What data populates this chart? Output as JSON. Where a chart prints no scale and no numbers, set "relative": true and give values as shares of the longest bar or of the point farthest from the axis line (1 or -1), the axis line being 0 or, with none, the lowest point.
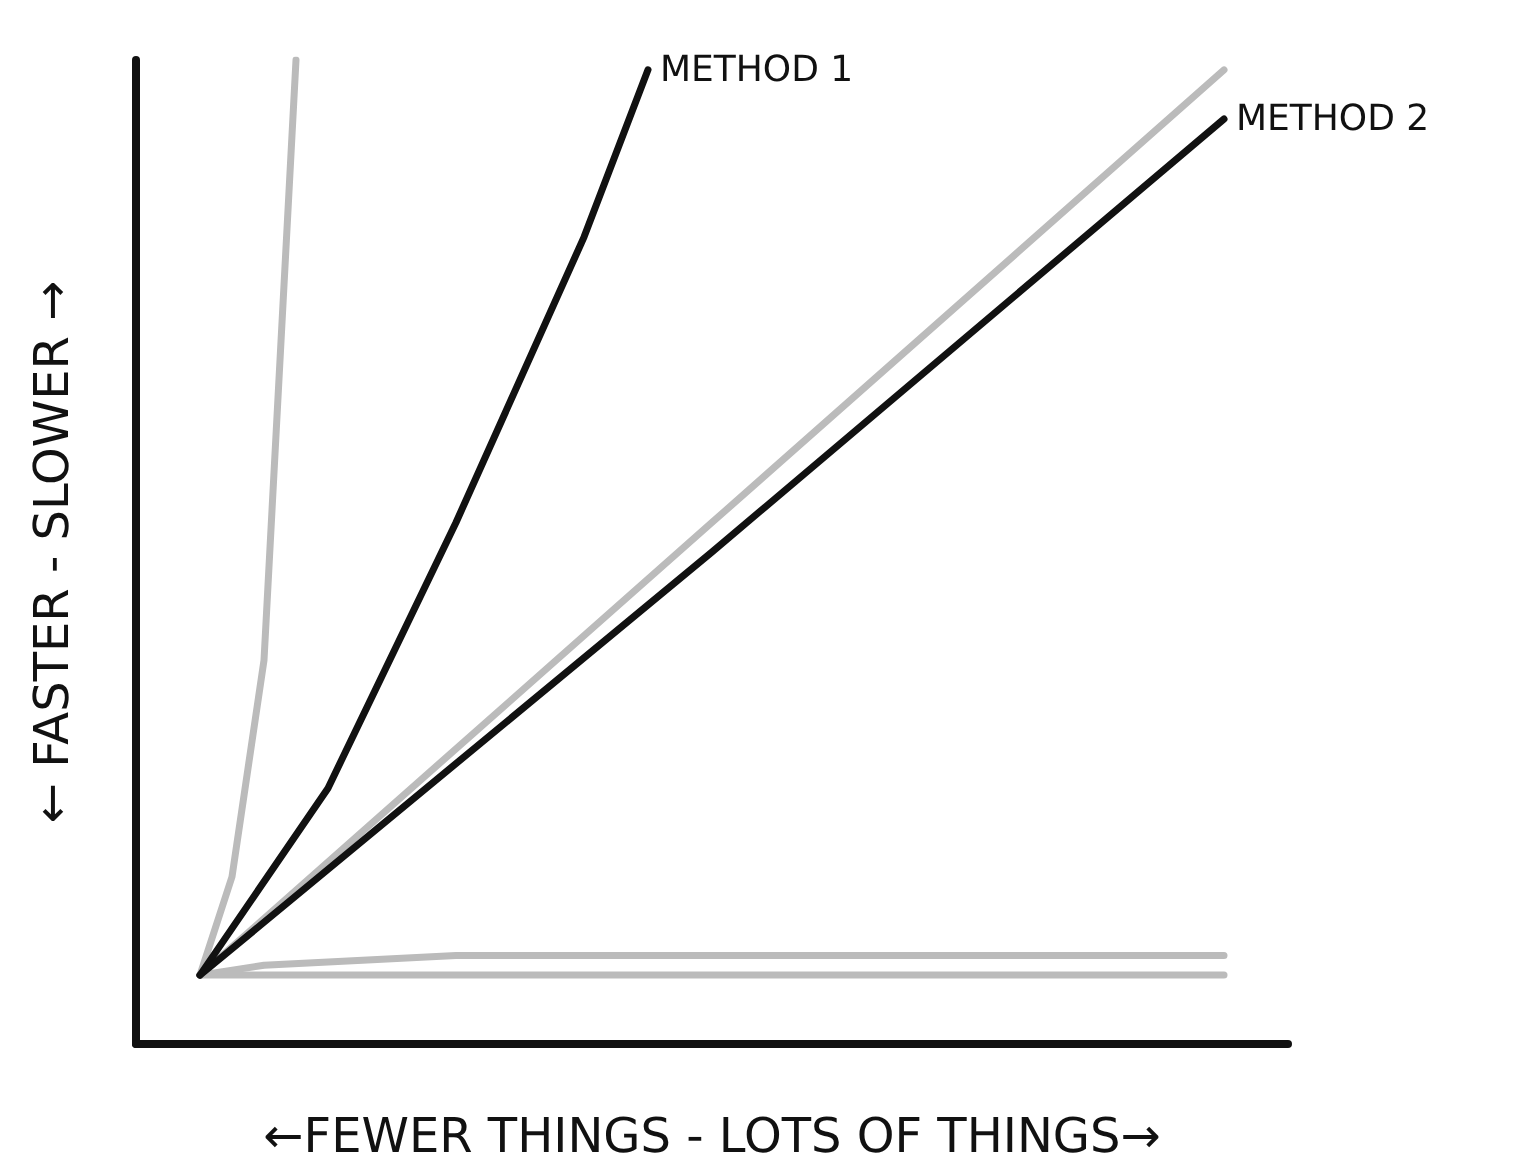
{
  "chart_data": {
    "type": "line",
    "relative": true,
    "xlabel": "←FEWER THINGS - LOTS OF THINGS→",
    "ylabel": "← FASTER - SLOWER →",
    "marker": "none",
    "line_style": "solid",
    "categories": [
      null,
      null,
      null,
      null,
      null,
      null,
      null,
      null,
      null,
      null,
      null,
      null,
      null,
      null,
      null,
      null,
      null,
      null,
      null,
      null,
      null,
      null,
      null,
      null,
      null,
      null,
      null,
      null,
      null,
      null,
      null,
      null,
      null,
      null,
      null,
      null,
      null
    ],
    "series": [
      {
        "color": "#bbbbbb",
        "values": [
          null,
          null,
          0.07,
          0.17,
          0.39,
          1.0,
          null,
          null,
          null,
          null,
          null,
          null,
          null,
          null,
          null,
          null,
          null,
          null,
          null,
          null,
          null,
          null,
          null,
          null,
          null,
          null,
          null,
          null,
          null,
          null,
          null,
          null,
          null,
          null,
          null,
          null,
          null
        ]
      },
      {
        "color": "#bbbbbb",
        "values": [
          null,
          null,
          0.07,
          null,
          null,
          null,
          null,
          null,
          null,
          null,
          null,
          null,
          null,
          null,
          null,
          null,
          null,
          null,
          0.53,
          null,
          null,
          null,
          null,
          null,
          null,
          null,
          null,
          null,
          null,
          null,
          null,
          null,
          null,
          null,
          0.99,
          null,
          null
        ]
      },
      {
        "color": "#bbbbbb",
        "values": [
          null,
          null,
          0.07,
          null,
          0.08,
          null,
          null,
          null,
          null,
          null,
          0.09,
          null,
          null,
          null,
          null,
          null,
          null,
          null,
          null,
          null,
          null,
          null,
          null,
          null,
          null,
          null,
          null,
          null,
          null,
          null,
          null,
          null,
          null,
          null,
          0.09,
          null,
          null
        ]
      },
      {
        "color": "#bbbbbb",
        "values": [
          null,
          null,
          0.07,
          null,
          null,
          null,
          null,
          null,
          null,
          null,
          null,
          null,
          null,
          null,
          null,
          null,
          null,
          null,
          null,
          null,
          null,
          null,
          null,
          null,
          null,
          null,
          null,
          null,
          null,
          null,
          null,
          null,
          null,
          null,
          0.07,
          null,
          null
        ]
      },
      {
        "name": "METHOD 1",
        "color": "#111111",
        "values": [
          null,
          null,
          0.07,
          null,
          null,
          null,
          0.26,
          null,
          null,
          null,
          0.53,
          null,
          null,
          null,
          0.82,
          null,
          0.99,
          null,
          null,
          null,
          null,
          null,
          null,
          null,
          null,
          null,
          null,
          null,
          null,
          null,
          null,
          null,
          null,
          null,
          null,
          null,
          null
        ]
      },
      {
        "name": "METHOD 2",
        "color": "#111111",
        "values": [
          null,
          null,
          0.07,
          null,
          null,
          null,
          null,
          null,
          null,
          null,
          null,
          null,
          null,
          null,
          null,
          null,
          null,
          null,
          0.5,
          null,
          null,
          null,
          null,
          null,
          null,
          null,
          null,
          null,
          null,
          null,
          null,
          null,
          null,
          null,
          0.94,
          null,
          null
        ]
      }
    ]
  }
}
